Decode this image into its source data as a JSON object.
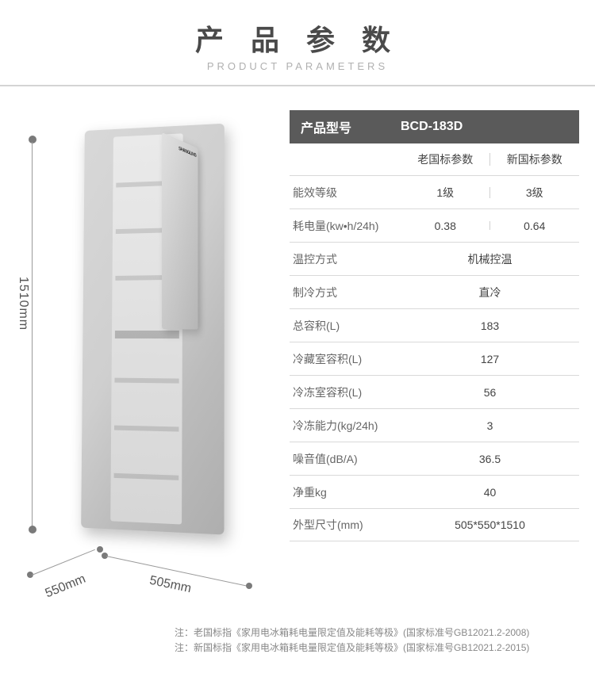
{
  "header": {
    "title": "产 品 参 数",
    "subtitle": "PRODUCT PARAMETERS"
  },
  "dimensions": {
    "height": "1510mm",
    "depth": "550mm",
    "width": "505mm"
  },
  "specTable": {
    "modelLabel": "产品型号",
    "modelValue": "BCD-183D",
    "stdOldLabel": "老国标参数",
    "stdNewLabel": "新国标参数",
    "rows": [
      {
        "label": "能效等级",
        "split": true,
        "v1": "1级",
        "v2": "3级"
      },
      {
        "label": "耗电量(kw•h/24h)",
        "split": true,
        "v1": "0.38",
        "v2": "0.64"
      },
      {
        "label": "温控方式",
        "split": false,
        "value": "机械控温"
      },
      {
        "label": "制冷方式",
        "split": false,
        "value": "直冷"
      },
      {
        "label": "总容积(L)",
        "split": false,
        "value": "183"
      },
      {
        "label": "冷藏室容积(L)",
        "split": false,
        "value": "127"
      },
      {
        "label": "冷冻室容积(L)",
        "split": false,
        "value": "56"
      },
      {
        "label": "冷冻能力(kg/24h)",
        "split": false,
        "value": "3"
      },
      {
        "label": "噪音值(dB/A)",
        "split": false,
        "value": "36.5"
      },
      {
        "label": "净重kg",
        "split": false,
        "value": "40"
      },
      {
        "label": "外型尺寸(mm)",
        "split": false,
        "value": "505*550*1510"
      }
    ]
  },
  "notes": {
    "n1": "注：老国标指《家用电冰箱耗电量限定值及能耗等极》(国家标准号GB12021.2-2008)",
    "n2": "注：新国标指《家用电冰箱耗电量限定值及能耗等极》(国家标准号GB12021.2-2015)"
  },
  "colors": {
    "headerText": "#4a4a4a",
    "subtitleText": "#b0b0b0",
    "tableHeaderBg": "#5a5a5a",
    "border": "#d9d9d9",
    "bodyText": "#444444",
    "noteText": "#888888"
  },
  "brandMark": "SHANGLING"
}
